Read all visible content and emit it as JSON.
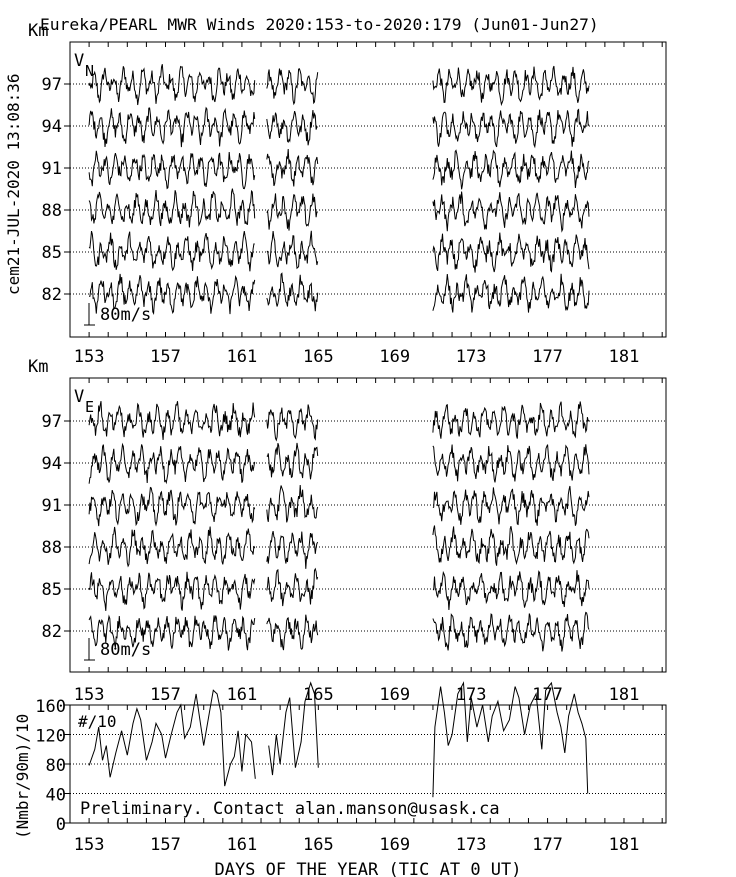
{
  "title": "Eureka/PEARL MWR Winds 2020:153-to-2020:179 (Jun01-Jun27)",
  "side_stamp": "cem21-JUL-2020 13:08:36",
  "colors": {
    "background": "#ffffff",
    "ink": "#000000"
  },
  "chart_data": [
    {
      "type": "line",
      "panel_label": "VN",
      "panel_label_main": "V",
      "panel_label_sub": "N",
      "ylabel": "Km",
      "altitudes": [
        "97",
        "94",
        "91",
        "88",
        "85",
        "82"
      ],
      "scale_label": "80m/s",
      "x_ticks": [
        "153",
        "157",
        "161",
        "165",
        "169",
        "173",
        "177",
        "181"
      ],
      "xlim": [
        152,
        183.2
      ],
      "data_segments": [
        [
          153.0,
          161.7
        ],
        [
          162.3,
          165.0
        ],
        [
          171.0,
          179.2
        ]
      ],
      "grid": "dotted horizontal at each altitude"
    },
    {
      "type": "line",
      "panel_label": "VE",
      "panel_label_main": "V",
      "panel_label_sub": "E",
      "ylabel": "Km",
      "altitudes": [
        "97",
        "94",
        "91",
        "88",
        "85",
        "82"
      ],
      "scale_label": "80m/s",
      "x_ticks": [
        "153",
        "157",
        "161",
        "165",
        "169",
        "173",
        "177",
        "181"
      ],
      "xlim": [
        152,
        183.2
      ],
      "data_segments": [
        [
          153.0,
          161.7
        ],
        [
          162.3,
          165.0
        ],
        [
          171.0,
          179.2
        ]
      ],
      "grid": "dotted horizontal at each altitude"
    },
    {
      "type": "line",
      "ylabel": "(Nmbr/90m)/10",
      "panel_label": "#/10",
      "y_ticks": [
        "0",
        "40",
        "80",
        "120",
        "160"
      ],
      "ylim": [
        0,
        160
      ],
      "x_ticks": [
        "153",
        "157",
        "161",
        "165",
        "169",
        "173",
        "177",
        "181"
      ],
      "xlim": [
        152,
        183.2
      ],
      "xlabel": "DAYS OF THE YEAR (TIC AT 0 UT)",
      "annotation": "Preliminary. Contact alan.manson@usask.ca",
      "segments": [
        {
          "x": [
            153.0,
            153.3,
            153.5,
            153.7,
            153.9,
            154.1,
            154.4,
            154.7,
            155.0,
            155.3,
            155.5,
            155.7,
            156.0,
            156.3,
            156.5,
            156.8,
            157.0,
            157.3,
            157.6,
            157.8,
            158.0,
            158.3,
            158.6,
            158.8,
            159.0,
            159.3,
            159.5,
            159.7,
            159.9,
            160.1,
            160.4,
            160.6,
            160.8,
            161.0,
            161.2,
            161.5,
            161.7
          ],
          "y": [
            78,
            100,
            130,
            85,
            105,
            62,
            95,
            125,
            92,
            135,
            155,
            140,
            85,
            110,
            135,
            120,
            88,
            120,
            150,
            160,
            115,
            130,
            175,
            140,
            105,
            150,
            180,
            175,
            150,
            50,
            80,
            90,
            125,
            70,
            120,
            110,
            60
          ]
        },
        {
          "x": [
            162.4,
            162.6,
            162.8,
            163.0,
            163.3,
            163.5,
            163.8,
            164.1,
            164.3,
            164.6,
            164.8,
            165.0
          ],
          "y": [
            105,
            65,
            120,
            80,
            150,
            170,
            75,
            110,
            165,
            190,
            175,
            75
          ]
        },
        {
          "x": [
            171.0,
            171.1,
            171.4,
            171.6,
            171.8,
            172.0,
            172.3,
            172.6,
            172.8,
            173.0,
            173.3,
            173.6,
            173.9,
            174.1,
            174.4,
            174.7,
            175.0,
            175.3,
            175.5,
            175.8,
            176.1,
            176.4,
            176.7,
            176.9,
            177.2,
            177.5,
            177.7,
            177.9,
            178.1,
            178.4,
            178.6,
            178.8,
            179.0,
            179.1
          ],
          "y": [
            35,
            130,
            185,
            150,
            105,
            120,
            175,
            190,
            110,
            170,
            130,
            160,
            110,
            145,
            165,
            125,
            140,
            185,
            170,
            120,
            160,
            175,
            100,
            180,
            190,
            150,
            130,
            95,
            145,
            175,
            150,
            135,
            115,
            40
          ]
        }
      ]
    }
  ]
}
